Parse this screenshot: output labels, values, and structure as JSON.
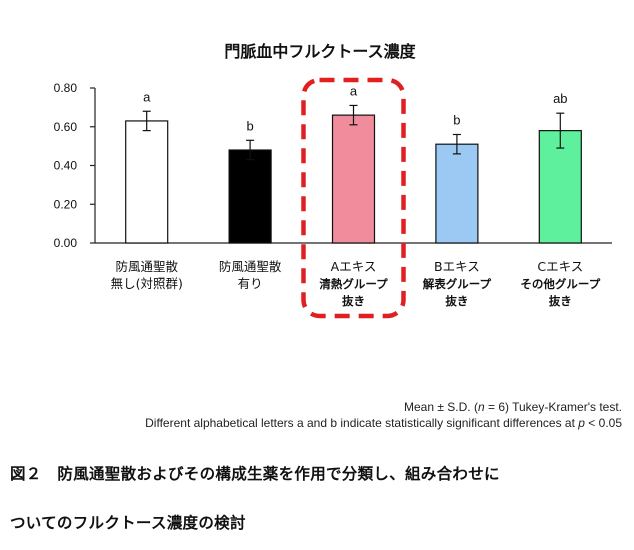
{
  "chart_data": {
    "type": "bar",
    "title": "門脈血中フルクトース濃度",
    "ylim": [
      0,
      0.8
    ],
    "yticks": [
      "0.00",
      "0.20",
      "0.40",
      "0.60",
      "0.80"
    ],
    "grid": false,
    "categories": [
      {
        "line1": "防風通聖散",
        "line2": "無し(対照群)",
        "line3": ""
      },
      {
        "line1": "防風通聖散",
        "line2": "有り",
        "line3": ""
      },
      {
        "line1": "Aエキス",
        "line2": "清熱グループ",
        "line3": "抜き"
      },
      {
        "line1": "Bエキス",
        "line2": "解表グループ",
        "line3": "抜き"
      },
      {
        "line1": "Cエキス",
        "line2": "その他グループ",
        "line3": "抜き"
      }
    ],
    "values": [
      0.63,
      0.48,
      0.66,
      0.51,
      0.58
    ],
    "errors": [
      0.05,
      0.05,
      0.05,
      0.05,
      0.09
    ],
    "letters": [
      "a",
      "b",
      "a",
      "b",
      "ab"
    ],
    "bar_colors": [
      "#ffffff",
      "#000000",
      "#f08c9c",
      "#9cc8f4",
      "#5ef09c"
    ],
    "highlight_index": 2,
    "highlight_color": "#e02020"
  },
  "notes": {
    "line1_pre": "Mean ± S.D. (",
    "line1_n": "n",
    "line1_post": " = 6) Tukey-Kramer's test.",
    "line2_pre": "Different alphabetical letters a and b indicate statistically significant differences at ",
    "line2_p": "p",
    "line2_post": " < 0.05"
  },
  "caption": {
    "line1": "図２　防風通聖散およびその構成生薬を作用で分類し、組み合わせに",
    "line2": "ついてのフルクトース濃度の検討"
  }
}
